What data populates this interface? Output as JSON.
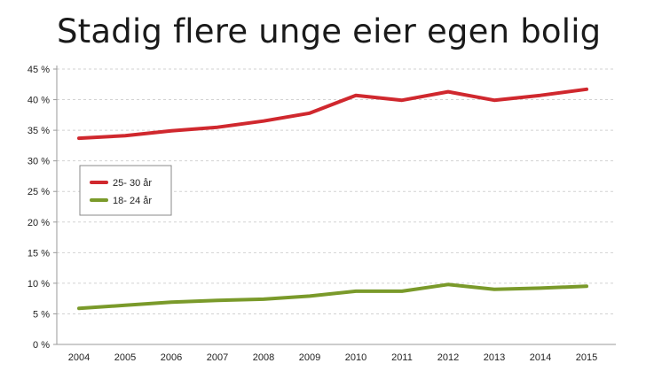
{
  "chart_data": {
    "type": "line",
    "title": "Stadig flere unge eier egen bolig",
    "xlabel": "",
    "ylabel": "",
    "x": [
      "2004",
      "2005",
      "2006",
      "2007",
      "2008",
      "2009",
      "2010",
      "2011",
      "2012",
      "2013",
      "2014",
      "2015"
    ],
    "ylim": [
      0,
      45
    ],
    "yticks": [
      0,
      5,
      10,
      15,
      20,
      25,
      30,
      35,
      40,
      45
    ],
    "ytick_labels": [
      "0 %",
      "5 %",
      "10 %",
      "15 %",
      "20 %",
      "25 %",
      "30 %",
      "35 %",
      "40 %",
      "45 %"
    ],
    "grid": true,
    "legend_position": "left",
    "series": [
      {
        "name": "25- 30 år",
        "color": "#d0282e",
        "values": [
          33.7,
          34.1,
          34.9,
          35.5,
          36.5,
          37.8,
          40.7,
          39.9,
          41.3,
          39.9,
          40.7,
          41.7
        ]
      },
      {
        "name": "18- 24 år",
        "color": "#7a9a2a",
        "values": [
          5.9,
          6.4,
          6.9,
          7.2,
          7.4,
          7.9,
          8.7,
          8.7,
          9.8,
          9.0,
          9.2,
          9.5
        ]
      }
    ]
  }
}
